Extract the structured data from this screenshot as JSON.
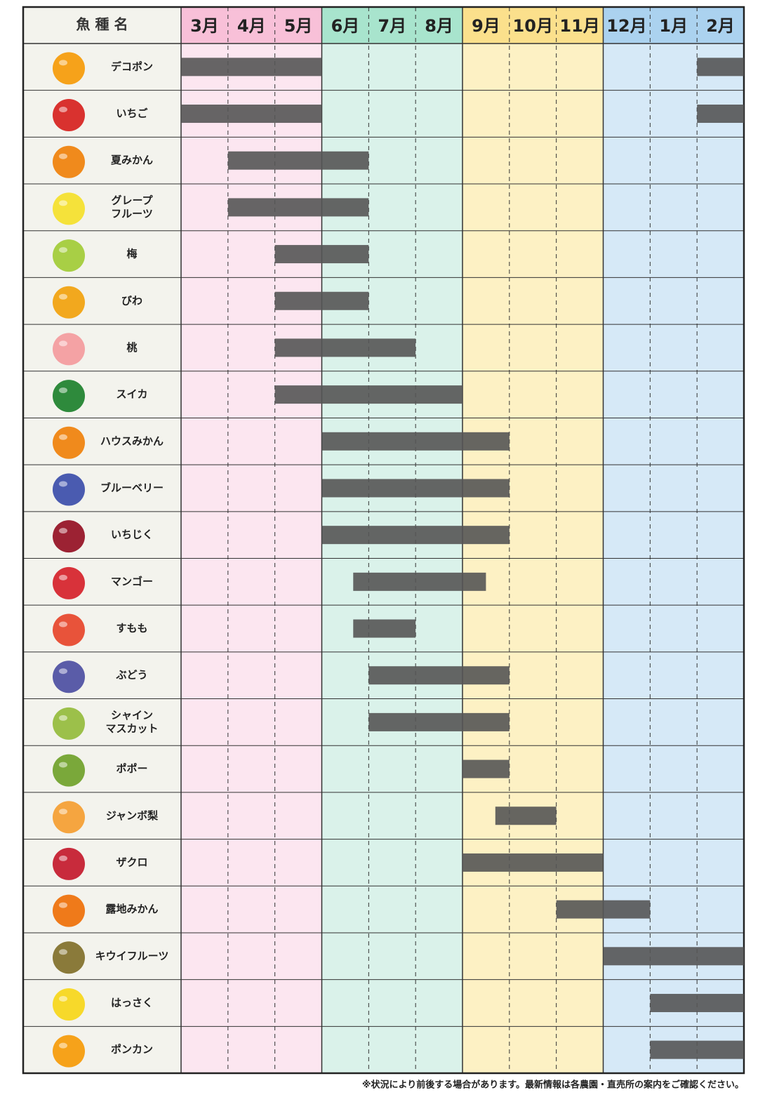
{
  "chart_data": {
    "type": "gantt",
    "header": "魚 種 名",
    "months": [
      "3月",
      "4月",
      "5月",
      "6月",
      "7月",
      "8月",
      "9月",
      "10月",
      "11月",
      "12月",
      "1月",
      "2月"
    ],
    "rows": [
      {
        "name": [
          "デコポン"
        ],
        "periods": [
          [
            0,
            3
          ],
          [
            11,
            12
          ]
        ]
      },
      {
        "name": [
          "いちご"
        ],
        "periods": [
          [
            0,
            3
          ],
          [
            11,
            12
          ]
        ]
      },
      {
        "name": [
          "夏みかん"
        ],
        "periods": [
          [
            1,
            4
          ]
        ]
      },
      {
        "name": [
          "グレープ",
          "フルーツ"
        ],
        "periods": [
          [
            1,
            4
          ]
        ]
      },
      {
        "name": [
          "梅"
        ],
        "periods": [
          [
            2,
            4
          ]
        ]
      },
      {
        "name": [
          "びわ"
        ],
        "periods": [
          [
            2,
            4
          ]
        ]
      },
      {
        "name": [
          "桃"
        ],
        "periods": [
          [
            2,
            5
          ]
        ]
      },
      {
        "name": [
          "スイカ"
        ],
        "periods": [
          [
            2,
            6
          ]
        ]
      },
      {
        "name": [
          "ハウスみかん"
        ],
        "periods": [
          [
            3,
            7
          ]
        ]
      },
      {
        "name": [
          "ブルーベリー"
        ],
        "periods": [
          [
            3,
            7
          ]
        ]
      },
      {
        "name": [
          "いちじく"
        ],
        "periods": [
          [
            3,
            7
          ]
        ]
      },
      {
        "name": [
          "マンゴー"
        ],
        "periods": [
          [
            3.67,
            6.5
          ]
        ]
      },
      {
        "name": [
          "すもも"
        ],
        "periods": [
          [
            3.67,
            5
          ]
        ]
      },
      {
        "name": [
          "ぶどう"
        ],
        "periods": [
          [
            4,
            7
          ]
        ]
      },
      {
        "name": [
          "シャイン",
          "マスカット"
        ],
        "periods": [
          [
            4,
            7
          ]
        ]
      },
      {
        "name": [
          "ポポー"
        ],
        "periods": [
          [
            6,
            7
          ]
        ]
      },
      {
        "name": [
          "ジャンボ梨"
        ],
        "periods": [
          [
            6.7,
            8
          ]
        ]
      },
      {
        "name": [
          "ザクロ"
        ],
        "periods": [
          [
            6,
            9
          ]
        ]
      },
      {
        "name": [
          "露地みかん"
        ],
        "periods": [
          [
            8,
            10
          ]
        ]
      },
      {
        "name": [
          "キウイフルーツ"
        ],
        "periods": [
          [
            9,
            12
          ]
        ]
      },
      {
        "name": [
          "はっさく"
        ],
        "periods": [
          [
            10,
            12
          ]
        ]
      },
      {
        "name": [
          "ポンカン"
        ],
        "periods": [
          [
            10,
            12
          ]
        ]
      }
    ],
    "bar_color": "#555555",
    "footnote": "※状況により前後する場合があります。最新情報は各農園・直売所の案内をご確認ください。"
  }
}
